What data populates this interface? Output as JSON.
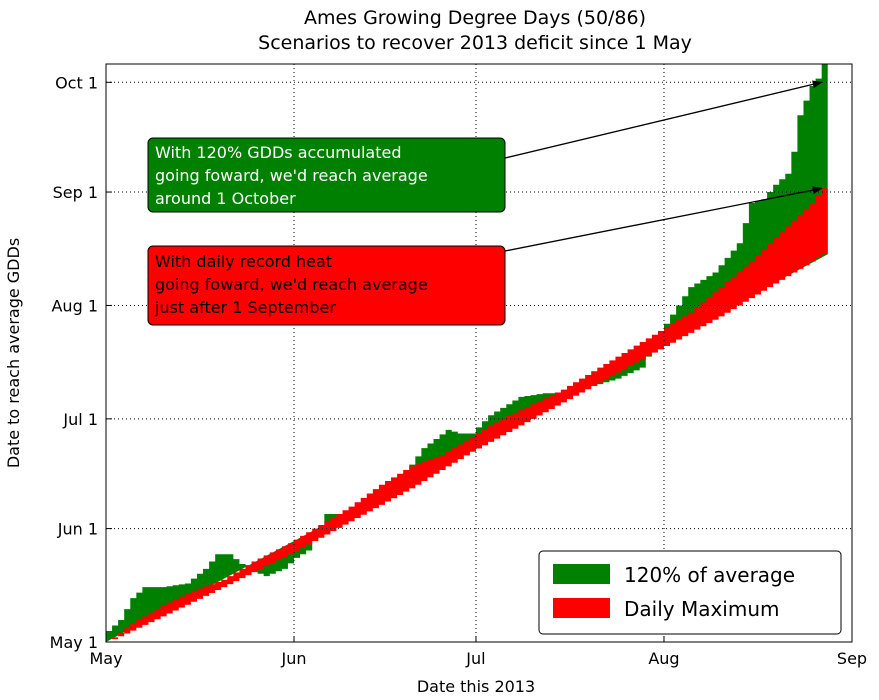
{
  "chart_data": {
    "type": "area",
    "title": "Ames Growing Degree Days (50/86)",
    "subtitle": "Scenarios to recover 2013 deficit since 1 May",
    "xlabel": "Date this 2013",
    "ylabel": "Date to reach average GDDs",
    "x_ticks": [
      "May",
      "Jun",
      "Jul",
      "Aug",
      "Sep"
    ],
    "y_ticks": [
      "May 1",
      "Jun 1",
      "Jul 1",
      "Aug 1",
      "Sep 1",
      "Oct 1"
    ],
    "x_range": [
      "2013-05-01",
      "2013-09-01"
    ],
    "y_range": [
      "2013-05-01",
      "2013-10-06"
    ],
    "grid": true,
    "legend_position": "lower-right",
    "series": [
      {
        "name": "120% of average",
        "color": "#008000",
        "points": [
          [
            "2013-05-01",
            "2013-05-04"
          ],
          [
            "2013-05-03",
            "2013-05-07"
          ],
          [
            "2013-05-05",
            "2013-05-13"
          ],
          [
            "2013-05-07",
            "2013-05-16"
          ],
          [
            "2013-05-10",
            "2013-05-16"
          ],
          [
            "2013-05-14",
            "2013-05-17"
          ],
          [
            "2013-05-17",
            "2013-05-21"
          ],
          [
            "2013-05-19",
            "2013-05-25"
          ],
          [
            "2013-05-21",
            "2013-05-25"
          ],
          [
            "2013-05-24",
            "2013-05-21"
          ],
          [
            "2013-05-27",
            "2013-05-19"
          ],
          [
            "2013-05-30",
            "2013-05-21"
          ],
          [
            "2013-06-01",
            "2013-05-24"
          ],
          [
            "2013-06-03",
            "2013-05-26"
          ],
          [
            "2013-06-06",
            "2013-06-05"
          ],
          [
            "2013-06-09",
            "2013-06-05"
          ],
          [
            "2013-06-12",
            "2013-06-07"
          ],
          [
            "2013-06-14",
            "2013-06-10"
          ],
          [
            "2013-06-18",
            "2013-06-14"
          ],
          [
            "2013-06-22",
            "2013-06-23"
          ],
          [
            "2013-06-26",
            "2013-06-28"
          ],
          [
            "2013-06-28",
            "2013-06-27"
          ],
          [
            "2013-06-30",
            "2013-06-27"
          ],
          [
            "2013-07-03",
            "2013-07-02"
          ],
          [
            "2013-07-08",
            "2013-07-07"
          ],
          [
            "2013-07-12",
            "2013-07-08"
          ],
          [
            "2013-07-16",
            "2013-07-08"
          ],
          [
            "2013-07-20",
            "2013-07-10"
          ],
          [
            "2013-07-24",
            "2013-07-12"
          ],
          [
            "2013-07-28",
            "2013-07-15"
          ],
          [
            "2013-08-01",
            "2013-07-27"
          ],
          [
            "2013-08-05",
            "2013-08-06"
          ],
          [
            "2013-08-09",
            "2013-08-10"
          ],
          [
            "2013-08-13",
            "2013-08-18"
          ],
          [
            "2013-08-15",
            "2013-08-29"
          ],
          [
            "2013-08-17",
            "2013-08-30"
          ],
          [
            "2013-08-19",
            "2013-09-03"
          ],
          [
            "2013-08-21",
            "2013-09-06"
          ],
          [
            "2013-08-22",
            "2013-09-12"
          ],
          [
            "2013-08-23",
            "2013-09-22"
          ],
          [
            "2013-08-24",
            "2013-09-26"
          ],
          [
            "2013-08-25",
            "2013-09-30"
          ],
          [
            "2013-08-26",
            "2013-10-02"
          ],
          [
            "2013-08-27",
            "2013-10-06"
          ]
        ]
      },
      {
        "name": "Daily Maximum",
        "color": "#ff0000",
        "points": [
          [
            "2013-05-01",
            "2013-05-01"
          ],
          [
            "2013-05-05",
            "2013-05-06"
          ],
          [
            "2013-05-10",
            "2013-05-11"
          ],
          [
            "2013-05-15",
            "2013-05-15"
          ],
          [
            "2013-05-20",
            "2013-05-18"
          ],
          [
            "2013-05-25",
            "2013-05-23"
          ],
          [
            "2013-05-31",
            "2013-05-28"
          ],
          [
            "2013-06-05",
            "2013-06-02"
          ],
          [
            "2013-06-10",
            "2013-06-07"
          ],
          [
            "2013-06-15",
            "2013-06-13"
          ],
          [
            "2013-06-20",
            "2013-06-18"
          ],
          [
            "2013-06-25",
            "2013-06-21"
          ],
          [
            "2013-06-30",
            "2013-06-26"
          ],
          [
            "2013-07-05",
            "2013-07-01"
          ],
          [
            "2013-07-10",
            "2013-07-05"
          ],
          [
            "2013-07-15",
            "2013-07-09"
          ],
          [
            "2013-07-20",
            "2013-07-14"
          ],
          [
            "2013-07-25",
            "2013-07-19"
          ],
          [
            "2013-07-31",
            "2013-07-25"
          ],
          [
            "2013-08-05",
            "2013-07-30"
          ],
          [
            "2013-08-10",
            "2013-08-06"
          ],
          [
            "2013-08-15",
            "2013-08-13"
          ],
          [
            "2013-08-20",
            "2013-08-21"
          ],
          [
            "2013-08-25",
            "2013-08-29"
          ],
          [
            "2013-08-27",
            "2013-09-02"
          ]
        ],
        "baseline": [
          [
            "2013-05-01",
            "2013-05-01"
          ],
          [
            "2013-05-10",
            "2013-05-08"
          ],
          [
            "2013-05-20",
            "2013-05-16"
          ],
          [
            "2013-05-31",
            "2013-05-25"
          ],
          [
            "2013-06-10",
            "2013-06-03"
          ],
          [
            "2013-06-20",
            "2013-06-12"
          ],
          [
            "2013-06-30",
            "2013-06-22"
          ],
          [
            "2013-07-10",
            "2013-07-01"
          ],
          [
            "2013-07-20",
            "2013-07-10"
          ],
          [
            "2013-07-31",
            "2013-07-20"
          ],
          [
            "2013-08-10",
            "2013-07-29"
          ],
          [
            "2013-08-20",
            "2013-08-08"
          ],
          [
            "2013-08-27",
            "2013-08-15"
          ]
        ]
      }
    ],
    "annotations": [
      {
        "id": "green",
        "lines": [
          "With 120% GDDs accumulated",
          "going foward, we'd reach average",
          "around 1 October"
        ],
        "box_color": "#008000",
        "text_color": "#ffffff",
        "arrow_to": [
          "2013-08-27",
          "2013-10-01"
        ]
      },
      {
        "id": "red",
        "lines": [
          "With daily record heat",
          "going foward, we'd reach average",
          "just after 1 September"
        ],
        "box_color": "#ff0000",
        "text_color": "#000000",
        "arrow_to": [
          "2013-08-27",
          "2013-09-02"
        ]
      }
    ]
  }
}
